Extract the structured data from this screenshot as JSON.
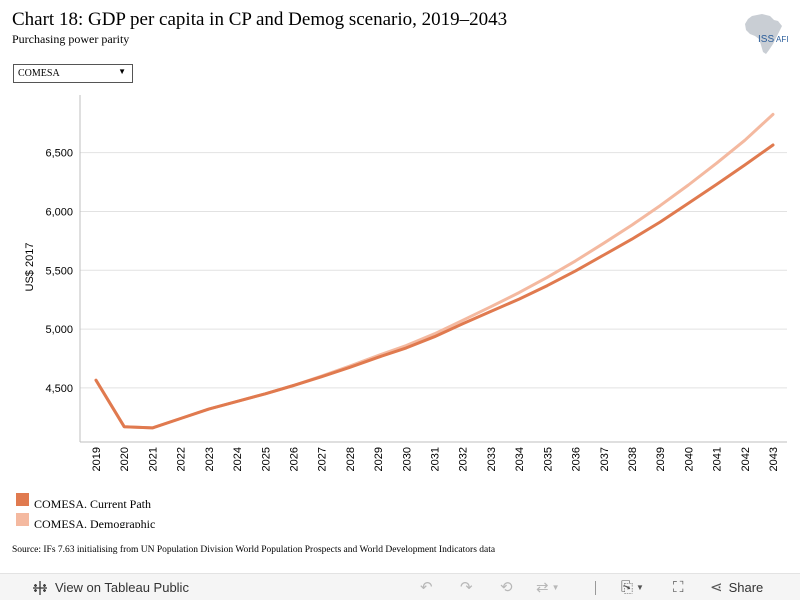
{
  "title": "Chart 18: GDP per capita in CP and Demog scenario, 2019–2043",
  "subtitle": "Purchasing power parity",
  "logo": {
    "text": "ISS",
    "suffix": "AFI"
  },
  "filter": {
    "selected": "COMESA"
  },
  "chart_data": {
    "type": "line",
    "x": [
      2019,
      2020,
      2021,
      2022,
      2023,
      2024,
      2025,
      2026,
      2027,
      2028,
      2029,
      2030,
      2031,
      2032,
      2033,
      2034,
      2035,
      2036,
      2037,
      2038,
      2039,
      2040,
      2041,
      2042,
      2043
    ],
    "xtick_labels": [
      "2019",
      "2020",
      "2021",
      "2022",
      "2023",
      "2024",
      "2025",
      "2026",
      "2027",
      "2028",
      "2029",
      "2030",
      "2031",
      "2032",
      "2033",
      "2034",
      "2035",
      "2036",
      "2037",
      "2038",
      "2039",
      "2040",
      "2041",
      "2042",
      "2043"
    ],
    "series": [
      {
        "name": "COMESA. Current Path",
        "color": "#e07a4f",
        "values": [
          4565,
          4170,
          4160,
          4240,
          4320,
          4385,
          4450,
          4520,
          4595,
          4675,
          4760,
          4840,
          4935,
          5045,
          5150,
          5255,
          5370,
          5495,
          5630,
          5765,
          5910,
          6070,
          6230,
          6395,
          6565
        ]
      },
      {
        "name": "COMESA. Demographic",
        "color": "#f4b9a0",
        "values": [
          4565,
          4170,
          4160,
          4240,
          4320,
          4385,
          4450,
          4520,
          4600,
          4685,
          4775,
          4860,
          4960,
          5075,
          5190,
          5310,
          5440,
          5580,
          5730,
          5885,
          6050,
          6225,
          6410,
          6605,
          6825
        ]
      }
    ],
    "ylabel": "US$ 2017",
    "yticks": [
      4500,
      5000,
      5500,
      6000,
      6500
    ],
    "ytick_labels": [
      "4,500",
      "5,000",
      "5,500",
      "6,000",
      "6,500"
    ],
    "ylim": [
      4040,
      6990
    ],
    "grid": "horizontal"
  },
  "source": "Source: IFs 7.63 initialising from UN Population Division World Population Prospects and World Development Indicators data",
  "toolbar": {
    "view_label": "View on Tableau Public",
    "share_label": "Share"
  }
}
